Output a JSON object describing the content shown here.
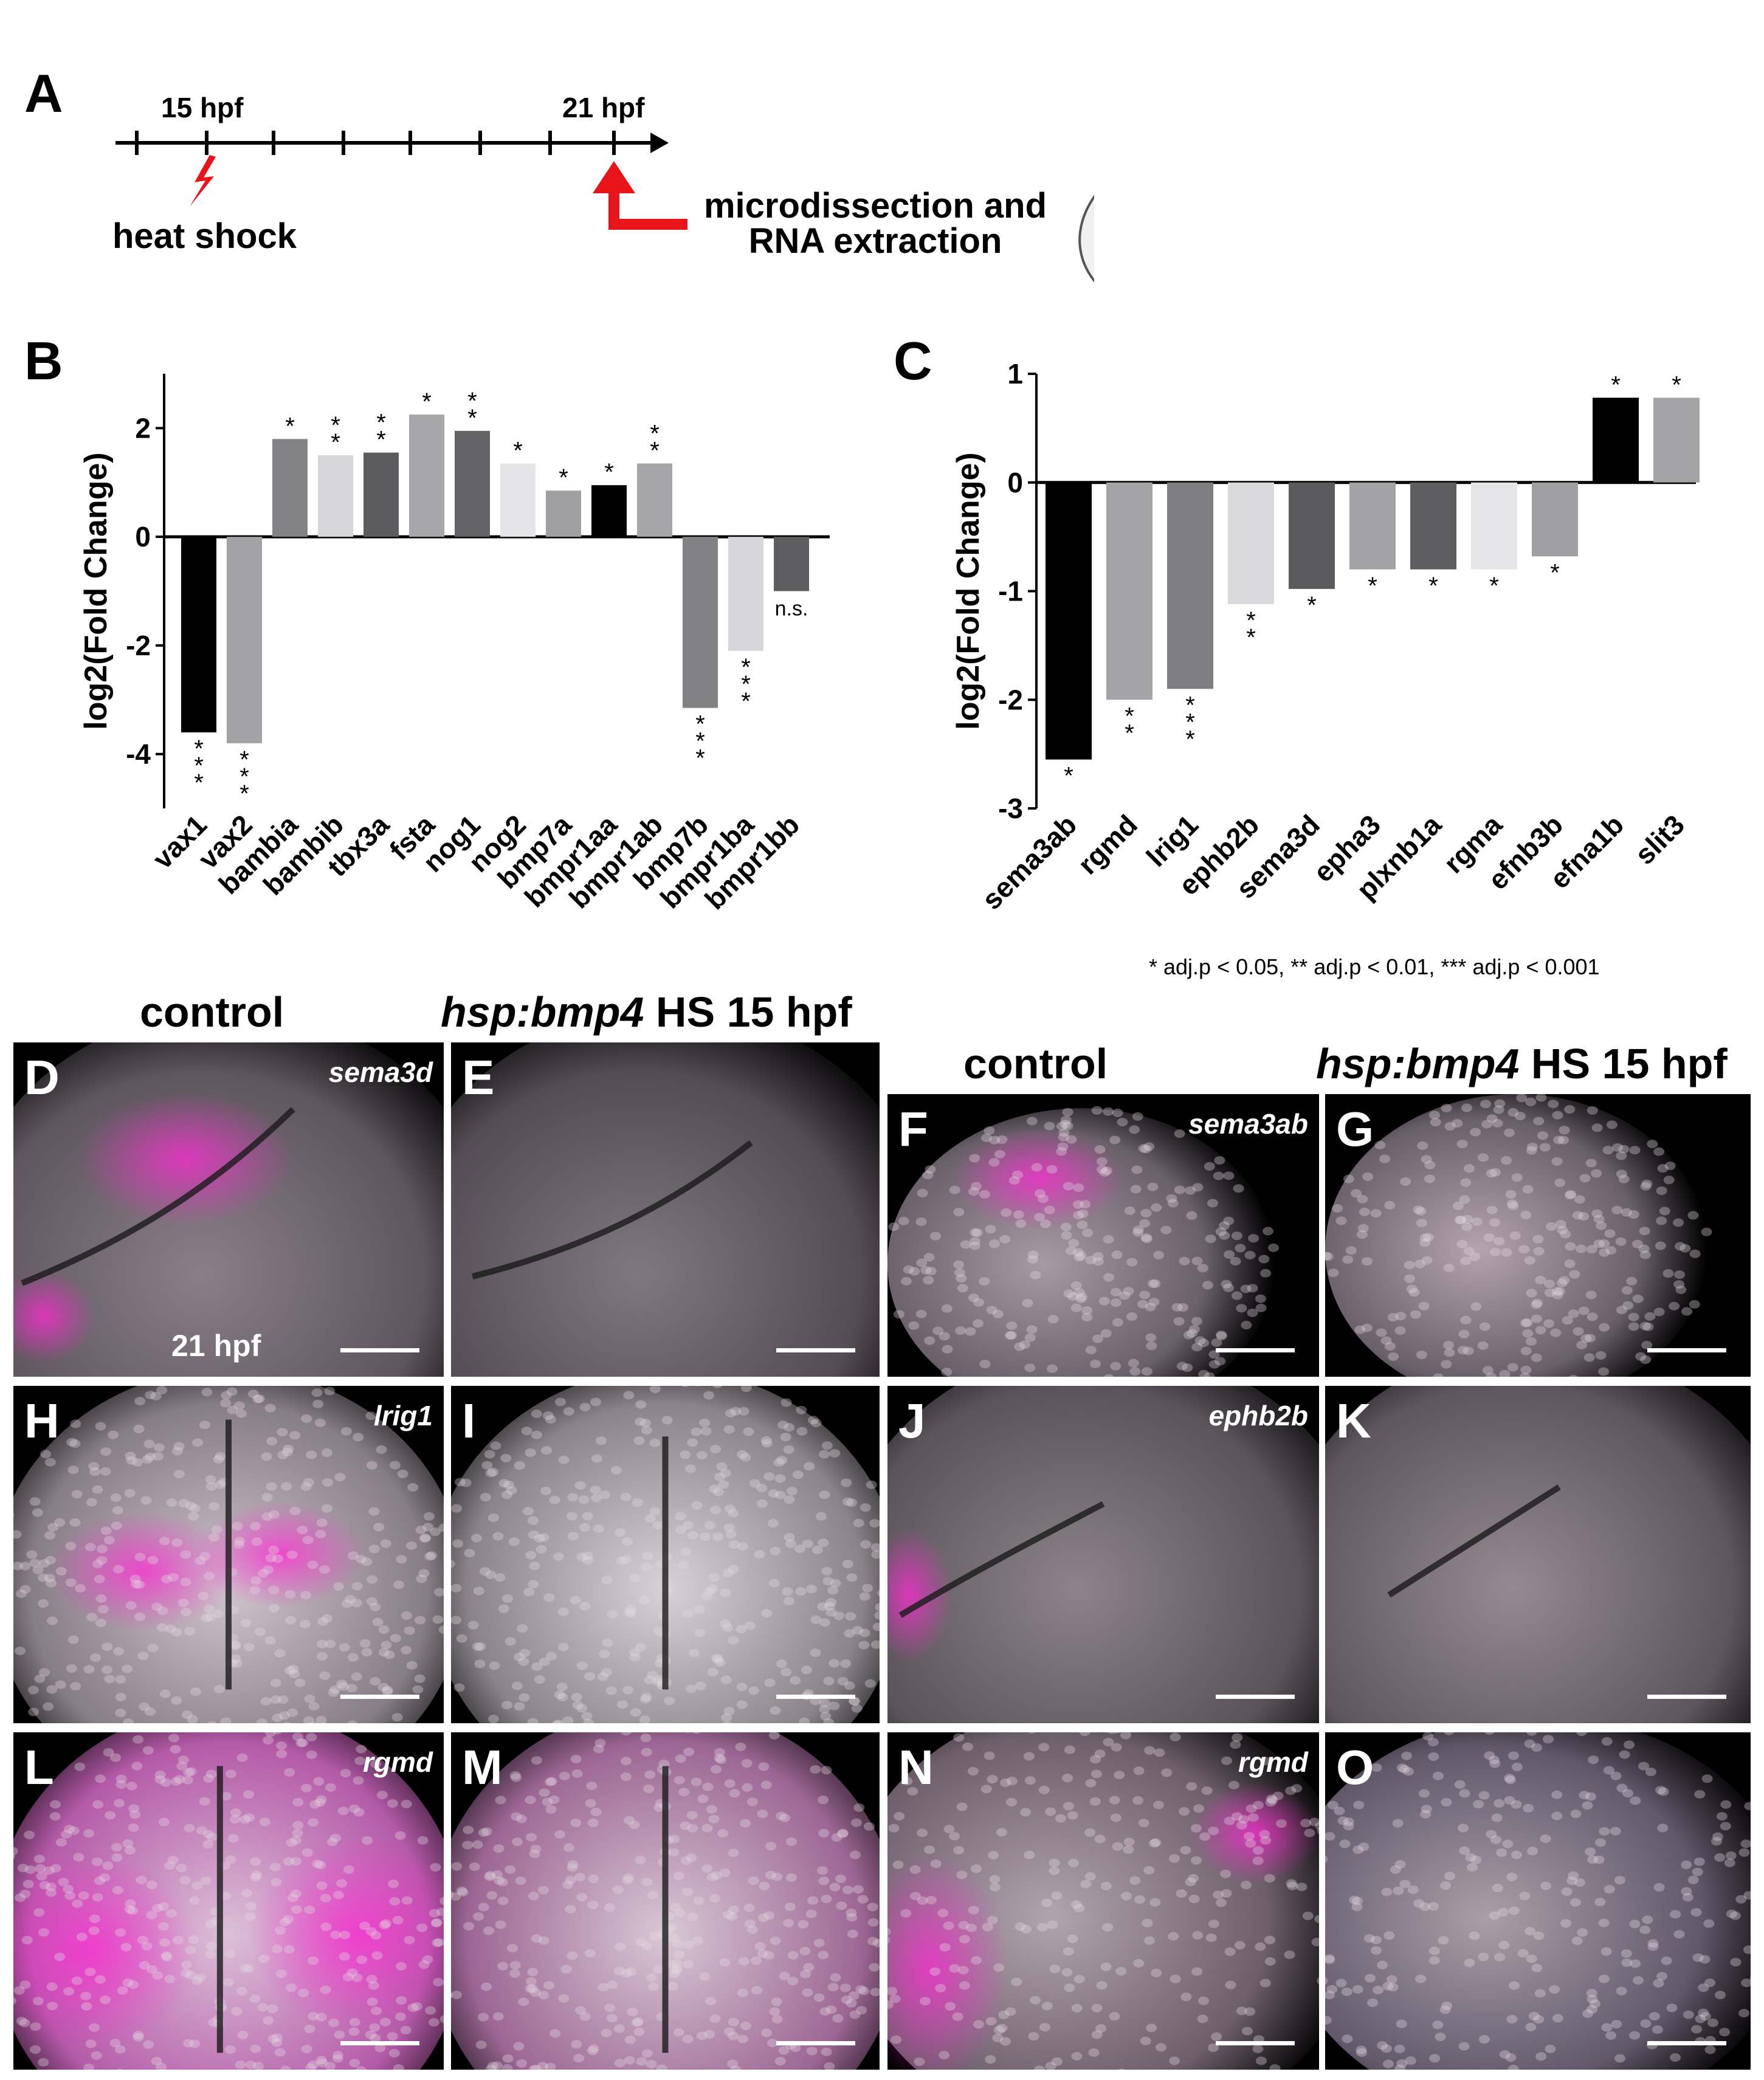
{
  "panelA": {
    "letter": "A",
    "tick_left": "15 hpf",
    "tick_right": "21 hpf",
    "heat_shock": "heat shock",
    "micro_line1": "microdissection and",
    "micro_line2": "RNA extraction"
  },
  "colors": {
    "accent_red": "#e8141a",
    "magenta": "#ff2ad4"
  },
  "chart_data": [
    {
      "panel": "B",
      "type": "bar",
      "ylabel": "log2(Fold Change)",
      "ylim": [
        -5,
        3
      ],
      "yticks": [
        -4,
        -2,
        0,
        2
      ],
      "categories": [
        "vax1",
        "vax2",
        "bambia",
        "bambib",
        "tbx3a",
        "fsta",
        "nog1",
        "nog2",
        "bmp7a",
        "bmpr1aa",
        "bmpr1ab",
        "bmp7b",
        "bmpr1ba",
        "bmpr1bb"
      ],
      "values": [
        -3.6,
        -3.8,
        1.8,
        1.5,
        1.55,
        2.25,
        1.95,
        1.35,
        0.85,
        0.95,
        1.35,
        -3.15,
        -2.1,
        -1.0
      ],
      "significance": [
        "***",
        "***",
        "*",
        "**",
        "**",
        "*",
        "**",
        "*",
        "*",
        "*",
        "**",
        "***",
        "***",
        "n.s."
      ],
      "bar_colors": [
        "#000000",
        "#a2a2a4",
        "#838385",
        "#d7d7d9",
        "#5c5c5e",
        "#a7a7a9",
        "#636365",
        "#e5e5e7",
        "#a0a0a2",
        "#000000",
        "#a5a5a7",
        "#828284",
        "#d7d7d9",
        "#5d5d5f"
      ]
    },
    {
      "panel": "C",
      "type": "bar",
      "ylabel": "log2(Fold Change)",
      "ylim": [
        -3,
        1
      ],
      "yticks": [
        -3,
        -2,
        -1,
        0,
        1
      ],
      "categories": [
        "sema3ab",
        "rgmd",
        "lrig1",
        "ephb2b",
        "sema3d",
        "epha3",
        "plxnb1a",
        "rgma",
        "efnb3b",
        "efna1b",
        "slit3"
      ],
      "values": [
        -2.55,
        -2.0,
        -1.9,
        -1.12,
        -0.98,
        -0.8,
        -0.8,
        -0.8,
        -0.68,
        0.78,
        0.78
      ],
      "significance": [
        "*",
        "**",
        "***",
        "**",
        "*",
        "*",
        "*",
        "*",
        "*",
        "*",
        "*"
      ],
      "bar_colors": [
        "#000000",
        "#a4a4a6",
        "#7e7e80",
        "#dadadc",
        "#5b5b5d",
        "#a3a3a5",
        "#5e5e60",
        "#e6e6e8",
        "#a0a0a2",
        "#000000",
        "#a4a4a6"
      ],
      "footnote": "* adj.p < 0.05, ** adj.p < 0.01, *** adj.p < 0.001"
    }
  ],
  "microscopy": {
    "header_control": "control",
    "header_hs_gene": "hsp:bmp4",
    "header_hs_rest": " HS 15 hpf",
    "stage": "21 hpf",
    "panels": [
      {
        "letter": "D",
        "gene": "sema3d"
      },
      {
        "letter": "E",
        "gene": ""
      },
      {
        "letter": "F",
        "gene": "sema3ab"
      },
      {
        "letter": "G",
        "gene": ""
      },
      {
        "letter": "H",
        "gene": "lrig1"
      },
      {
        "letter": "I",
        "gene": ""
      },
      {
        "letter": "J",
        "gene": "ephb2b"
      },
      {
        "letter": "K",
        "gene": ""
      },
      {
        "letter": "L",
        "gene": "rgmd"
      },
      {
        "letter": "M",
        "gene": ""
      },
      {
        "letter": "N",
        "gene": "rgmd"
      },
      {
        "letter": "O",
        "gene": ""
      }
    ]
  }
}
